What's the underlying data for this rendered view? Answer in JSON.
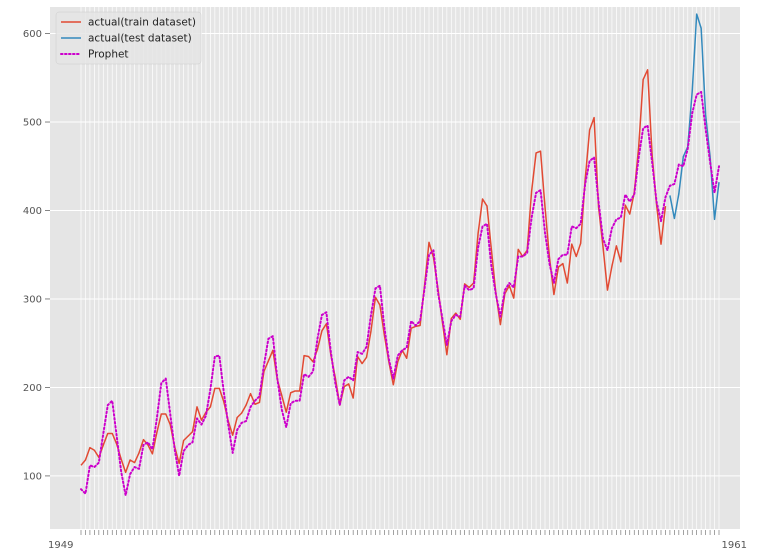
{
  "chart_data": {
    "type": "line",
    "title": "",
    "xlabel": "",
    "ylabel": "",
    "ylim": [
      40,
      630
    ],
    "yticks": [
      100,
      200,
      300,
      400,
      500,
      600
    ],
    "xtick_labels_visible": {
      "left": "1949",
      "right": "1961"
    },
    "grid": true,
    "legend_position": "top-left",
    "x_start": "1949-01",
    "x_frequency": "monthly",
    "series": [
      {
        "name": "actual(train dataset)",
        "color": "#E24A33",
        "style": "solid",
        "start_index": 0,
        "values": [
          112,
          118,
          132,
          129,
          121,
          135,
          148,
          148,
          136,
          119,
          104,
          118,
          115,
          126,
          141,
          135,
          125,
          149,
          170,
          170,
          158,
          133,
          114,
          140,
          145,
          150,
          178,
          163,
          172,
          178,
          199,
          199,
          184,
          162,
          146,
          166,
          171,
          180,
          193,
          181,
          183,
          218,
          230,
          242,
          209,
          191,
          172,
          194,
          196,
          196,
          236,
          235,
          229,
          243,
          264,
          272,
          237,
          211,
          180,
          201,
          204,
          188,
          235,
          227,
          234,
          264,
          302,
          293,
          259,
          229,
          203,
          229,
          242,
          233,
          267,
          269,
          270,
          315,
          364,
          347,
          312,
          274,
          237,
          278,
          284,
          277,
          317,
          313,
          318,
          374,
          413,
          405,
          355,
          306,
          271,
          306,
          315,
          301,
          356,
          348,
          355,
          422,
          465,
          467,
          404,
          347,
          305,
          336,
          340,
          318,
          362,
          348,
          363,
          435,
          491,
          505,
          404,
          359,
          310,
          337,
          360,
          342,
          406,
          396,
          420,
          472,
          548,
          559,
          463,
          407,
          362,
          405
        ]
      },
      {
        "name": "actual(test dataset)",
        "color": "#348ABD",
        "style": "solid",
        "start_index": 132,
        "values": [
          417,
          391,
          419,
          461,
          472,
          535,
          622,
          606,
          508,
          461,
          390,
          432
        ]
      },
      {
        "name": "Prophet",
        "color": "#CC00CC",
        "style": "dotted",
        "start_index": 0,
        "values": [
          85,
          80,
          112,
          110,
          115,
          148,
          180,
          185,
          145,
          105,
          78,
          102,
          110,
          108,
          135,
          138,
          130,
          165,
          205,
          210,
          170,
          130,
          100,
          128,
          135,
          138,
          165,
          158,
          168,
          198,
          235,
          236,
          195,
          158,
          126,
          152,
          160,
          162,
          178,
          185,
          190,
          225,
          255,
          258,
          210,
          175,
          155,
          182,
          185,
          185,
          215,
          212,
          218,
          255,
          282,
          285,
          240,
          205,
          180,
          208,
          212,
          208,
          240,
          238,
          246,
          282,
          312,
          315,
          268,
          232,
          210,
          236,
          242,
          245,
          275,
          270,
          275,
          312,
          350,
          355,
          308,
          278,
          248,
          275,
          282,
          280,
          315,
          310,
          312,
          358,
          382,
          385,
          336,
          305,
          280,
          310,
          318,
          313,
          348,
          348,
          352,
          392,
          420,
          423,
          375,
          340,
          318,
          345,
          350,
          350,
          382,
          380,
          385,
          430,
          456,
          460,
          410,
          368,
          355,
          380,
          390,
          392,
          418,
          410,
          418,
          460,
          493,
          496,
          455,
          410,
          388,
          415,
          428,
          430,
          452,
          450,
          470,
          510,
          531,
          534,
          492,
          455,
          420,
          450
        ]
      }
    ]
  }
}
